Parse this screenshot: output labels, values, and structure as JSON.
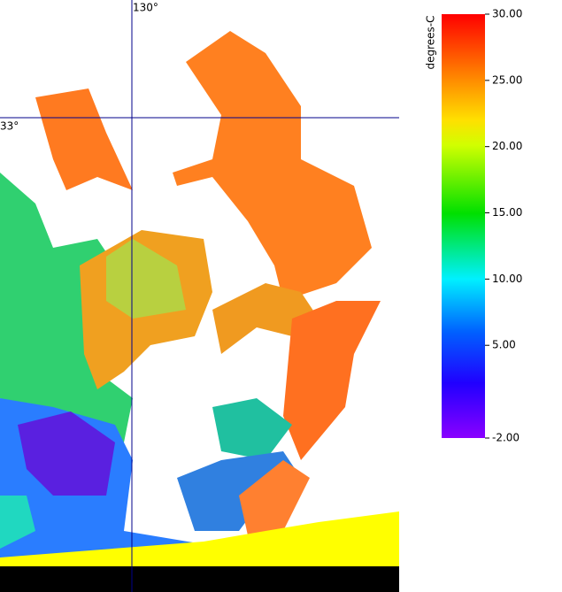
{
  "map": {
    "longitude_label": "130°",
    "latitude_label": "33°"
  },
  "colorbar": {
    "label": "degrees-C",
    "lim": [
      -2,
      30
    ],
    "ticks": [
      {
        "value": 30,
        "label": "30.00"
      },
      {
        "value": 25,
        "label": "25.00"
      },
      {
        "value": 20,
        "label": "20.00"
      },
      {
        "value": 15,
        "label": "15.00"
      },
      {
        "value": 10,
        "label": "10.00"
      },
      {
        "value": 5,
        "label": "5.00"
      },
      {
        "value": -2,
        "label": "-2.00"
      }
    ]
  }
}
